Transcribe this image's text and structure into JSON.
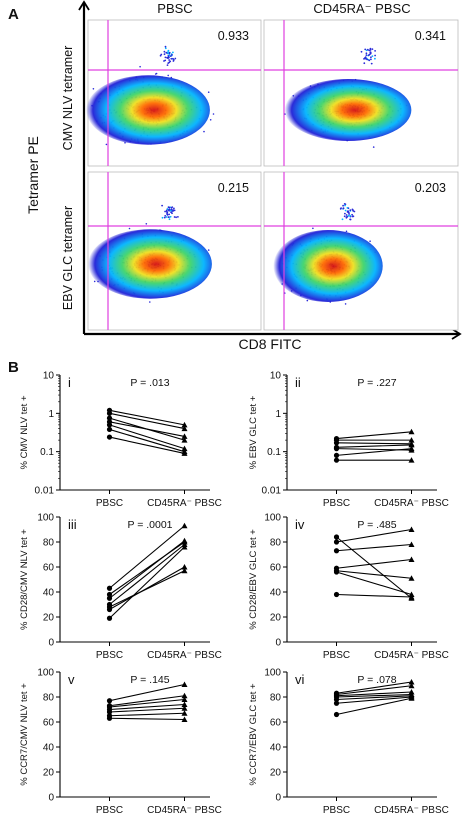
{
  "figure": {
    "panel_a_label": "A",
    "panel_b_label": "B"
  },
  "panel_a": {
    "columns": [
      "PBSC",
      "CD45RA⁻ PBSC"
    ],
    "rows": [
      "CMV NLV tetramer",
      "EBV GLC tetramer"
    ],
    "y_axis_label": "Tetramer PE",
    "x_axis_label": "CD8 FITC",
    "gate_values": [
      "0.933",
      "0.341",
      "0.215",
      "0.203"
    ],
    "colors": {
      "pseudocolor": [
        "#1f1fd6",
        "#00b4ff",
        "#3fd46a",
        "#f0e020",
        "#ff6a00",
        "#d41010"
      ],
      "gate_line": "#e040e0",
      "axis": "#000000"
    }
  },
  "chart_data": [
    {
      "id": "i",
      "type": "paired-line",
      "ylabel": "% CMV NLV tet +",
      "categories": [
        "PBSC",
        "CD45RA⁻ PBSC"
      ],
      "yscale": "log",
      "ylim": [
        0.01,
        10
      ],
      "yticks": [
        "0.01",
        "0.1",
        "1",
        "10"
      ],
      "p_value": "P = .013",
      "pairs": [
        [
          1.2,
          0.5
        ],
        [
          1.0,
          0.4
        ],
        [
          0.75,
          0.2
        ],
        [
          0.6,
          0.25
        ],
        [
          0.5,
          0.12
        ],
        [
          0.38,
          0.1
        ],
        [
          0.24,
          0.09
        ]
      ]
    },
    {
      "id": "ii",
      "type": "paired-line",
      "ylabel": "% EBV GLC tet +",
      "categories": [
        "PBSC",
        "CD45RA⁻ PBSC"
      ],
      "yscale": "log",
      "ylim": [
        0.01,
        10
      ],
      "yticks": [
        "0.01",
        "0.1",
        "1",
        "10"
      ],
      "p_value": "P = .227",
      "pairs": [
        [
          0.22,
          0.33
        ],
        [
          0.2,
          0.2
        ],
        [
          0.17,
          0.16
        ],
        [
          0.13,
          0.15
        ],
        [
          0.12,
          0.11
        ],
        [
          0.08,
          0.12
        ],
        [
          0.06,
          0.06
        ]
      ]
    },
    {
      "id": "iii",
      "type": "paired-line",
      "ylabel": "% CD28/CMV NLV tet +",
      "categories": [
        "PBSC",
        "CD45RA⁻ PBSC"
      ],
      "yscale": "linear",
      "ylim": [
        0,
        100
      ],
      "yticks": [
        "0",
        "20",
        "40",
        "60",
        "80",
        "100"
      ],
      "p_value": "P = .0001",
      "pairs": [
        [
          43,
          93
        ],
        [
          38,
          80
        ],
        [
          35,
          81
        ],
        [
          30,
          78
        ],
        [
          28,
          57
        ],
        [
          26,
          60
        ],
        [
          19,
          76
        ]
      ]
    },
    {
      "id": "iv",
      "type": "paired-line",
      "ylabel": "% CD28/EBV GLC tet +",
      "categories": [
        "PBSC",
        "CD45RA⁻ PBSC"
      ],
      "yscale": "linear",
      "ylim": [
        0,
        100
      ],
      "yticks": [
        "0",
        "20",
        "40",
        "60",
        "80",
        "100"
      ],
      "p_value": "P = .485",
      "pairs": [
        [
          84,
          35
        ],
        [
          80,
          90
        ],
        [
          73,
          78
        ],
        [
          59,
          66
        ],
        [
          57,
          51
        ],
        [
          56,
          38
        ],
        [
          38,
          36
        ]
      ]
    },
    {
      "id": "v",
      "type": "paired-line",
      "ylabel": "% CCR7/CMV NLV tet +",
      "categories": [
        "PBSC",
        "CD45RA⁻ PBSC"
      ],
      "yscale": "linear",
      "ylim": [
        0,
        100
      ],
      "yticks": [
        "0",
        "20",
        "40",
        "60",
        "80",
        "100"
      ],
      "p_value": "P = .145",
      "pairs": [
        [
          77,
          90
        ],
        [
          73,
          81
        ],
        [
          72,
          78
        ],
        [
          70,
          74
        ],
        [
          68,
          71
        ],
        [
          65,
          67
        ],
        [
          63,
          62
        ]
      ]
    },
    {
      "id": "vi",
      "type": "paired-line",
      "ylabel": "% CCR7/EBV GLC tet +",
      "categories": [
        "PBSC",
        "CD45RA⁻ PBSC"
      ],
      "yscale": "linear",
      "ylim": [
        0,
        100
      ],
      "yticks": [
        "0",
        "20",
        "40",
        "60",
        "80",
        "100"
      ],
      "p_value": "P = .078",
      "pairs": [
        [
          83,
          92
        ],
        [
          82,
          89
        ],
        [
          81,
          84
        ],
        [
          80,
          82
        ],
        [
          78,
          81
        ],
        [
          75,
          80
        ],
        [
          66,
          79
        ]
      ]
    }
  ]
}
